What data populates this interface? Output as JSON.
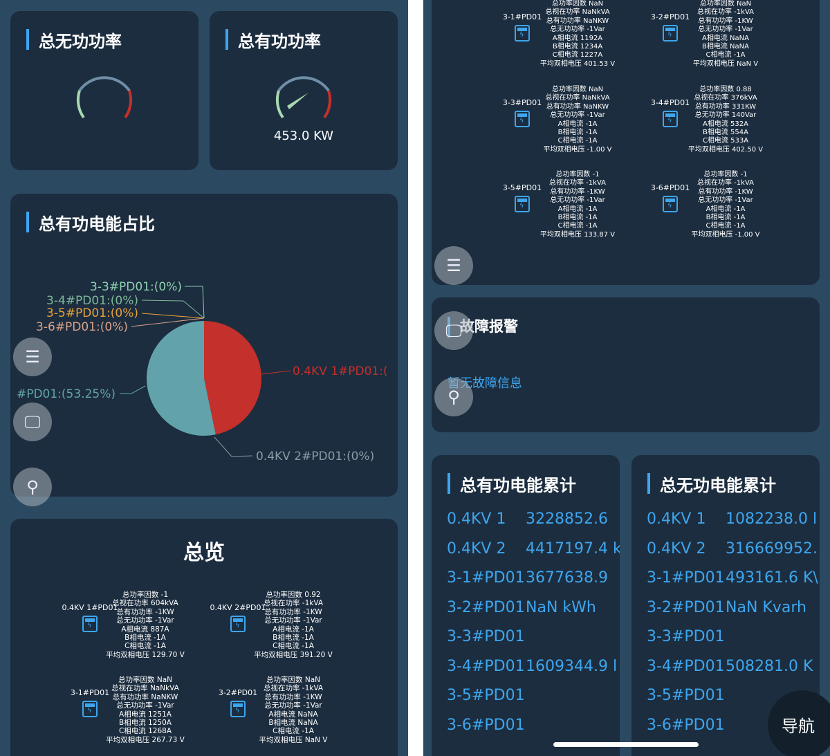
{
  "left": {
    "reactive_power": {
      "title": "总无功功率",
      "value": "",
      "level": 0
    },
    "active_power": {
      "title": "总有功功率",
      "value": "453.0 KW",
      "level": 0.22
    },
    "pie_title": "总有功电能占比",
    "chart_data": {
      "type": "pie",
      "slices": [
        {
          "label": "0.4KV 1#PD01:(",
          "value": 46.75,
          "color": "#c4302b"
        },
        {
          "label": "0.4KV 2#PD01:(0%)",
          "value": 0,
          "color": "#8a9aa5"
        },
        {
          "label": "#PD01:(53.25%)",
          "value": 53.25,
          "color": "#62a3ab"
        },
        {
          "label": "3-6#PD01:(0%)",
          "value": 0,
          "color": "#d9a28a"
        },
        {
          "label": "3-5#PD01:(0%)",
          "value": 0,
          "color": "#e7a13b"
        },
        {
          "label": "3-4#PD01:(0%)",
          "value": 0,
          "color": "#7fb89a"
        },
        {
          "label": "3-3#PD01:(0%)",
          "value": 0,
          "color": "#8fd3b0"
        }
      ]
    },
    "overview_title": "总览",
    "devices": [
      {
        "name": "0.4KV 1#PD01",
        "lines": [
          "总功率因数 -1",
          "总视在功率 604kVA",
          "总有功功率 -1KW",
          "总无功功率 -1Var",
          "A相电流 887A",
          "B相电流 -1A",
          "C相电流 -1A",
          "平均双相电压 129.70 V"
        ]
      },
      {
        "name": "0.4KV 2#PD01",
        "lines": [
          "总功率因数 0.92",
          "总视在功率 -1kVA",
          "总有功功率 -1KW",
          "总无功功率 -1Var",
          "A相电流 -1A",
          "B相电流 -1A",
          "C相电流 -1A",
          "平均双相电压 391.20 V"
        ]
      },
      {
        "name": "3-1#PD01",
        "lines": [
          "总功率因数 NaN",
          "总视在功率 NaNkVA",
          "总有功功率 NaNKW",
          "总无功功率 -1Var",
          "A相电流 1251A",
          "B相电流 1250A",
          "C相电流 1268A",
          "平均双相电压 267.73 V"
        ]
      },
      {
        "name": "3-2#PD01",
        "lines": [
          "总功率因数 NaN",
          "总视在功率 -1kVA",
          "总有功功率 -1KW",
          "总无功功率 -1Var",
          "A相电流 NaNA",
          "B相电流 NaNA",
          "C相电流 -1A",
          "平均双相电压 NaN V"
        ]
      }
    ]
  },
  "right": {
    "devices": [
      {
        "name": "3-1#PD01",
        "lines": [
          "总功率因数 NaN",
          "总视在功率 NaNkVA",
          "总有功功率 NaNKW",
          "总无功功率 -1Var",
          "A相电流 1192A",
          "B相电流 1234A",
          "C相电流 1227A",
          "平均双相电压 401.53 V"
        ]
      },
      {
        "name": "3-2#PD01",
        "lines": [
          "总功率因数 NaN",
          "总视在功率 -1kVA",
          "总有功功率 -1KW",
          "总无功功率 -1Var",
          "A相电流 NaNA",
          "B相电流 NaNA",
          "C相电流 -1A",
          "平均双相电压 NaN V"
        ]
      },
      {
        "name": "3-3#PD01",
        "lines": [
          "总功率因数 NaN",
          "总视在功率 NaNkVA",
          "总有功功率 NaNKW",
          "总无功功率 -1Var",
          "A相电流 -1A",
          "B相电流 -1A",
          "C相电流 -1A",
          "平均双相电压 -1.00 V"
        ]
      },
      {
        "name": "3-4#PD01",
        "lines": [
          "总功率因数 0.88",
          "总视在功率 376kVA",
          "总有功功率 331KW",
          "总无功功率 140Var",
          "A相电流 532A",
          "B相电流 554A",
          "C相电流 533A",
          "平均双相电压 402.50 V"
        ]
      },
      {
        "name": "3-5#PD01",
        "lines": [
          "总功率因数 -1",
          "总视在功率 -1kVA",
          "总有功功率 -1KW",
          "总无功功率 -1Var",
          "A相电流 -1A",
          "B相电流 -1A",
          "C相电流 -1A",
          "平均双相电压 133.87 V"
        ]
      },
      {
        "name": "3-6#PD01",
        "lines": [
          "总功率因数 -1",
          "总视在功率 -1kVA",
          "总有功功率 -1KW",
          "总无功功率 -1Var",
          "A相电流 -1A",
          "B相电流 -1A",
          "C相电流 -1A",
          "平均双相电压 -1.00 V"
        ]
      }
    ],
    "fault": {
      "title": "故障报警",
      "message": "暂无故障信息"
    },
    "active_energy": {
      "title": "总有功电能累计",
      "rows": [
        {
          "name": "0.4KV 1",
          "value": "3228852.6"
        },
        {
          "name": "0.4KV 2",
          "value": "4417197.4 k"
        },
        {
          "name": "3-1#PD01",
          "value": "3677638.9"
        },
        {
          "name": "3-2#PD01",
          "value": "NaN kWh"
        },
        {
          "name": "3-3#PD01",
          "value": ""
        },
        {
          "name": "3-4#PD01",
          "value": "1609344.9 l"
        },
        {
          "name": "3-5#PD01",
          "value": ""
        },
        {
          "name": "3-6#PD01",
          "value": ""
        }
      ]
    },
    "reactive_energy": {
      "title": "总无功电能累计",
      "rows": [
        {
          "name": "0.4KV 1",
          "value": "1082238.0 l"
        },
        {
          "name": "0.4KV 2",
          "value": "316669952."
        },
        {
          "name": "3-1#PD01",
          "value": "493161.6 K\\"
        },
        {
          "name": "3-2#PD01",
          "value": "NaN Kvarh"
        },
        {
          "name": "3-3#PD01",
          "value": ""
        },
        {
          "name": "3-4#PD01",
          "value": "508281.0 K"
        },
        {
          "name": "3-5#PD01",
          "value": ""
        },
        {
          "name": "3-6#PD01",
          "value": ""
        }
      ]
    },
    "nav_label": "导航"
  },
  "colors": {
    "accent": "#3ea6ee",
    "card": "#1c2d3f",
    "background": "#2b4a62"
  }
}
